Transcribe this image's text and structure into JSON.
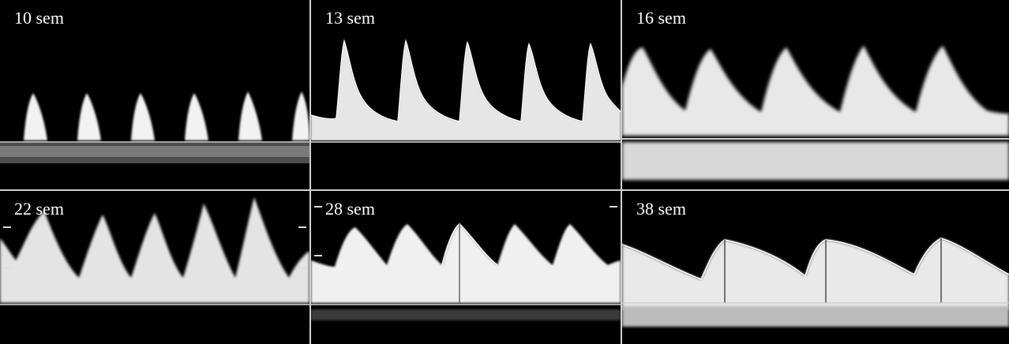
{
  "panels": [
    {
      "id": "p1",
      "label": "10 sem"
    },
    {
      "id": "p2",
      "label": "13 sem"
    },
    {
      "id": "p3",
      "label": "16 sem"
    },
    {
      "id": "p4",
      "label": "22 sem"
    },
    {
      "id": "p5",
      "label": "28 sem"
    },
    {
      "id": "p6",
      "label": "38 sem"
    }
  ]
}
